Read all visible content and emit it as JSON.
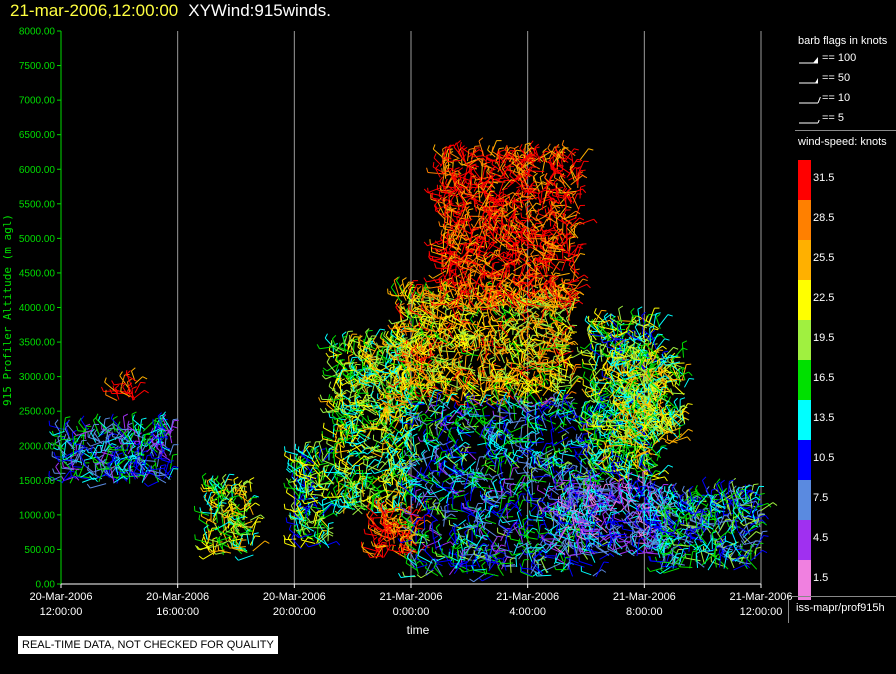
{
  "header": {
    "datetime": "21-mar-2006,12:00:00",
    "name": "XYWind:915winds."
  },
  "chart_data": {
    "type": "scatter",
    "subtype": "wind-barb time-height",
    "xlabel": "time",
    "ylabel": "915 Profiler Altitude (m agl)",
    "ylim": [
      0,
      8000
    ],
    "yticks": [
      "0.00",
      "500.00",
      "1000.00",
      "1500.00",
      "2000.00",
      "2500.00",
      "3000.00",
      "3500.00",
      "4000.00",
      "4500.00",
      "5000.00",
      "5500.00",
      "6000.00",
      "6500.00",
      "7000.00",
      "7500.00",
      "8000.00"
    ],
    "xticks": [
      {
        "date": "20-Mar-2006",
        "time": "12:00:00"
      },
      {
        "date": "20-Mar-2006",
        "time": "16:00:00"
      },
      {
        "date": "20-Mar-2006",
        "time": "20:00:00"
      },
      {
        "date": "21-Mar-2006",
        "time": "0:00:00"
      },
      {
        "date": "21-Mar-2006",
        "time": "4:00:00"
      },
      {
        "date": "21-Mar-2006",
        "time": "8:00:00"
      },
      {
        "date": "21-Mar-2006",
        "time": "12:00:00"
      }
    ],
    "grid": "vertical",
    "clusters": [
      {
        "t_hours": [
          0.0,
          3.8
        ],
        "alt_m": [
          1450,
          2250
        ],
        "speed_kts": 11
      },
      {
        "t_hours": [
          1.8,
          2.6
        ],
        "alt_m": [
          2650,
          2950
        ],
        "speed_kts": 31
      },
      {
        "t_hours": [
          5.0,
          6.6
        ],
        "alt_m": [
          400,
          1400
        ],
        "speed_kts": 20
      },
      {
        "t_hours": [
          8.0,
          9.2
        ],
        "alt_m": [
          500,
          1900
        ],
        "speed_kts": 17
      },
      {
        "t_hours": [
          9.3,
          12.0
        ],
        "alt_m": [
          1000,
          3500
        ],
        "speed_kts": 19
      },
      {
        "t_hours": [
          10.7,
          12.3
        ],
        "alt_m": [
          350,
          1050
        ],
        "speed_kts": 31
      },
      {
        "t_hours": [
          11.5,
          17.6
        ],
        "alt_m": [
          2600,
          4200
        ],
        "speed_kts": 24
      },
      {
        "t_hours": [
          13.0,
          17.8
        ],
        "alt_m": [
          4000,
          6200
        ],
        "speed_kts": 31
      },
      {
        "t_hours": [
          12.0,
          18.5
        ],
        "alt_m": [
          100,
          2600
        ],
        "speed_kts": 12
      },
      {
        "t_hours": [
          18.2,
          20.6
        ],
        "alt_m": [
          1500,
          3800
        ],
        "speed_kts": 18
      },
      {
        "t_hours": [
          17.0,
          20.8
        ],
        "alt_m": [
          400,
          1400
        ],
        "speed_kts": 8
      },
      {
        "t_hours": [
          19.2,
          21.4
        ],
        "alt_m": [
          2000,
          3300
        ],
        "speed_kts": 20
      },
      {
        "t_hours": [
          20.5,
          24.0
        ],
        "alt_m": [
          200,
          1300
        ],
        "speed_kts": 13
      }
    ],
    "barb_legend": {
      "title": "barb flags in knots",
      "entries": [
        {
          "label": "== 100",
          "value": 100
        },
        {
          "label": "== 50",
          "value": 50
        },
        {
          "label": "== 10",
          "value": 10
        },
        {
          "label": "== 5",
          "value": 5
        }
      ]
    },
    "colorbar": {
      "title": "wind-speed: knots",
      "levels": [
        {
          "value": "31.5",
          "color": "#ff0000"
        },
        {
          "value": "28.5",
          "color": "#ff8000"
        },
        {
          "value": "25.5",
          "color": "#ffb000"
        },
        {
          "value": "22.5",
          "color": "#ffff00"
        },
        {
          "value": "19.5",
          "color": "#a0f040"
        },
        {
          "value": "16.5",
          "color": "#00e000"
        },
        {
          "value": "13.5",
          "color": "#00ffff"
        },
        {
          "value": "10.5",
          "color": "#0000ff"
        },
        {
          "value": "7.5",
          "color": "#5a8ae0"
        },
        {
          "value": "4.5",
          "color": "#a030f0"
        },
        {
          "value": "1.5",
          "color": "#f080e0"
        }
      ]
    }
  },
  "source": "iss-mapr/prof915h",
  "quality_note": "REAL-TIME DATA, NOT CHECKED FOR QUALITY"
}
